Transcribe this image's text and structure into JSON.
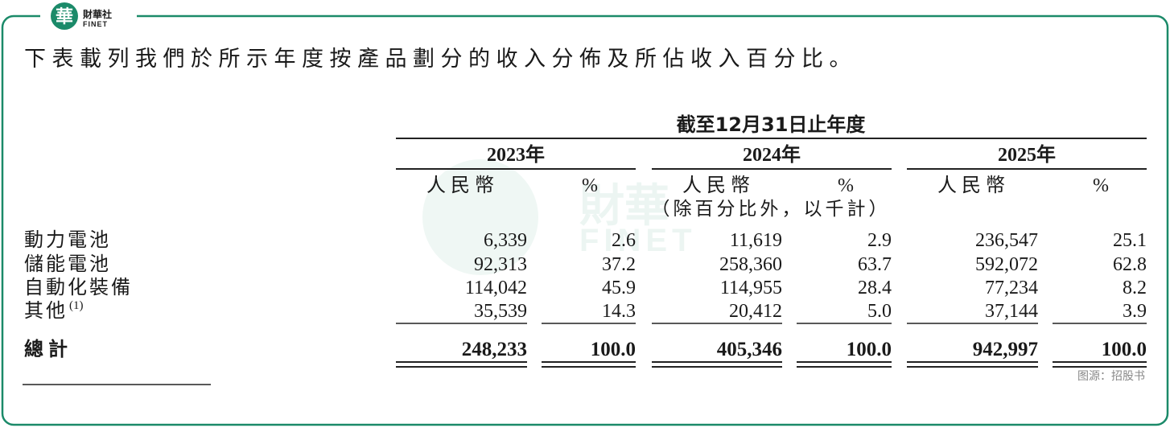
{
  "logo": {
    "mark": "華",
    "name": "財華社",
    "brand": "FINET"
  },
  "intro": "下表載列我們於所示年度按產品劃分的收入分佈及所佔收入百分比。",
  "watermark": {
    "name": "財華",
    "brand": "FINET"
  },
  "table": {
    "period": "截至12月31日止年度",
    "years": [
      "2023年",
      "2024年",
      "2025年"
    ],
    "currency": "人民幣",
    "percent": "%",
    "unit_note": "（除百分比外，以千計）",
    "rows": [
      {
        "label": "動力電池",
        "cells": [
          "6,339",
          "2.6",
          "11,619",
          "2.9",
          "236,547",
          "25.1"
        ]
      },
      {
        "label": "儲能電池",
        "cells": [
          "92,313",
          "37.2",
          "258,360",
          "63.7",
          "592,072",
          "62.8"
        ]
      },
      {
        "label": "自動化裝備",
        "cells": [
          "114,042",
          "45.9",
          "114,955",
          "28.4",
          "77,234",
          "8.2"
        ]
      },
      {
        "label": "其他",
        "note": "(1)",
        "cells": [
          "35,539",
          "14.3",
          "20,412",
          "5.0",
          "37,144",
          "3.9"
        ]
      }
    ],
    "total": {
      "label": "總計",
      "cells": [
        "248,233",
        "100.0",
        "405,346",
        "100.0",
        "942,997",
        "100.0"
      ]
    }
  },
  "source": "图源：招股书"
}
